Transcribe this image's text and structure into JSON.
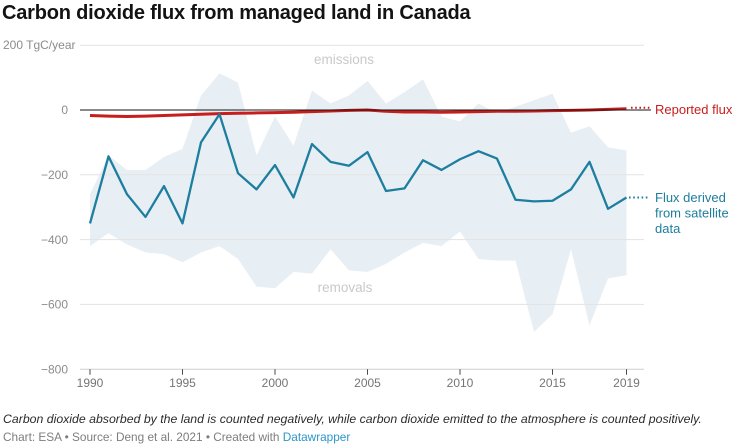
{
  "title": "Carbon dioxide flux from managed land in Canada",
  "chart_data": {
    "type": "line",
    "title": "Carbon dioxide flux from managed land in Canada",
    "unit_axis_label": "200 TgC/year",
    "ylabel": "TgC/year",
    "ylim": [
      -800,
      200
    ],
    "xlim": [
      1990,
      2019
    ],
    "grid": "horizontal",
    "legend_position": "right-of-line-ends",
    "x": [
      1990,
      1991,
      1992,
      1993,
      1994,
      1995,
      1996,
      1997,
      1998,
      1999,
      2000,
      2001,
      2002,
      2003,
      2004,
      2005,
      2006,
      2007,
      2008,
      2009,
      2010,
      2011,
      2012,
      2013,
      2014,
      2015,
      2016,
      2017,
      2018,
      2019
    ],
    "x_tick_years": [
      1990,
      1995,
      2000,
      2005,
      2010,
      2015,
      2019
    ],
    "x_tick_labels": [
      "1990",
      "1995",
      "2000",
      "2005",
      "2010",
      "2015",
      "2019"
    ],
    "y_tick_values": [
      0,
      -200,
      -400,
      -600,
      -800
    ],
    "y_tick_labels": [
      "0",
      "−200",
      "−400",
      "−600",
      "−800"
    ],
    "area_labels": {
      "top": "emissions",
      "bottom": "removals"
    },
    "series": [
      {
        "name": "Reported flux",
        "color": "#c71e1d",
        "values": [
          -17,
          -19,
          -20,
          -19,
          -17,
          -15,
          -13,
          -11,
          -10,
          -9,
          -8,
          -7,
          -5,
          -3,
          -1,
          0,
          -4,
          -6,
          -6,
          -7,
          -6,
          -5,
          -4,
          -4,
          -3,
          -2,
          -1,
          0,
          2,
          4
        ]
      },
      {
        "name": "Flux derived from satellite data",
        "label_lines": [
          "Flux derived",
          "from satellite",
          "data"
        ],
        "color": "#1d7e9f",
        "values": [
          -350,
          -143,
          -260,
          -330,
          -235,
          -350,
          -100,
          -13,
          -195,
          -245,
          -170,
          -270,
          -105,
          -160,
          -172,
          -130,
          -250,
          -242,
          -155,
          -185,
          -152,
          -127,
          -150,
          -277,
          -282,
          -280,
          -245,
          -160,
          -305,
          -270
        ],
        "band": {
          "color": "#e8eff4",
          "upper": [
            -260,
            -140,
            -185,
            -185,
            -145,
            -120,
            45,
            113,
            85,
            -140,
            -20,
            -110,
            60,
            20,
            45,
            90,
            20,
            55,
            95,
            -20,
            -35,
            20,
            -10,
            10,
            30,
            50,
            -70,
            -50,
            -115,
            -125
          ],
          "lower": [
            -420,
            -380,
            -415,
            -440,
            -445,
            -470,
            -440,
            -420,
            -460,
            -545,
            -550,
            -500,
            -505,
            -430,
            -495,
            -500,
            -475,
            -440,
            -410,
            -420,
            -375,
            -460,
            -465,
            -465,
            -685,
            -630,
            -430,
            -665,
            -520,
            -510
          ]
        }
      }
    ]
  },
  "footer": {
    "note": "Carbon dioxide absorbed by the land is counted negatively, while carbon dioxide emitted to the atmosphere is counted positively.",
    "credit_prefix": "Chart: ESA • Source: Deng et al. 2021 • Created with ",
    "credit_link": "Datawrapper"
  }
}
